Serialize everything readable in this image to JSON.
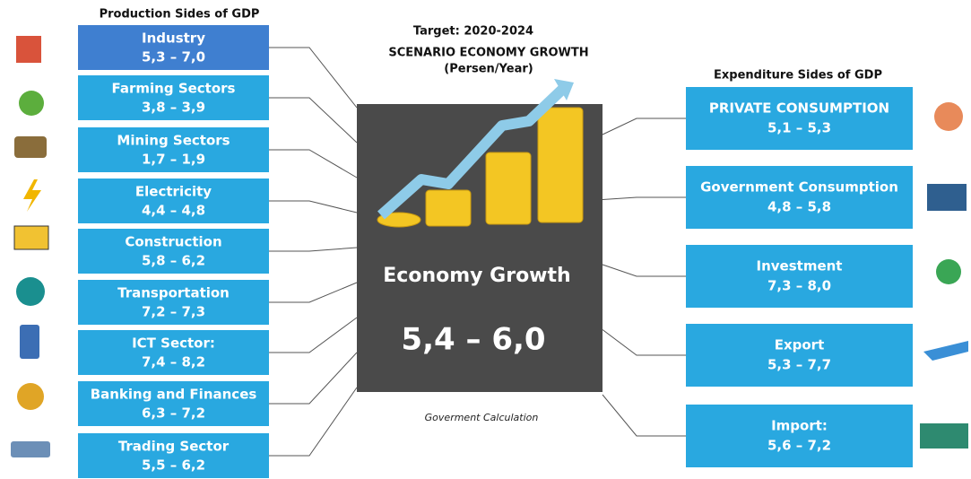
{
  "left": {
    "title": "Production Sides of GDP",
    "items": [
      {
        "name": "Industry",
        "range": "5,3 – 7,0"
      },
      {
        "name": "Farming Sectors",
        "range": "3,8 – 3,9"
      },
      {
        "name": "Mining Sectors",
        "range": "1,7 – 1,9"
      },
      {
        "name": "Electricity",
        "range": "4,4 – 4,8"
      },
      {
        "name": "Construction",
        "range": "5,8 – 6,2"
      },
      {
        "name": "Transportation",
        "range": "7,2 – 7,3"
      },
      {
        "name": "ICT Sector:",
        "range": "7,4 – 8,2"
      },
      {
        "name": "Banking and Finances",
        "range": "6,3 – 7,2"
      },
      {
        "name": "Trading Sector",
        "range": "5,5 – 6,2"
      }
    ]
  },
  "center": {
    "target": "Target: 2020-2024",
    "title": "SCENARIO ECONOMY GROWTH",
    "subtitle": "(Persen/Year)",
    "label": "Economy Growth",
    "range": "5,4 – 6,0",
    "caption": "Goverment Calculation"
  },
  "right": {
    "title": "Expenditure Sides of GDP",
    "items": [
      {
        "name": "PRIVATE CONSUMPTION",
        "range": "5,1 – 5,3"
      },
      {
        "name": "Government Consumption",
        "range": "4,8 – 5,8"
      },
      {
        "name": "Investment",
        "range": "7,3 – 8,0"
      },
      {
        "name": "Export",
        "range": "5,3 – 7,7"
      },
      {
        "name": "Import:",
        "range": "5,6 – 7,2"
      }
    ]
  }
}
